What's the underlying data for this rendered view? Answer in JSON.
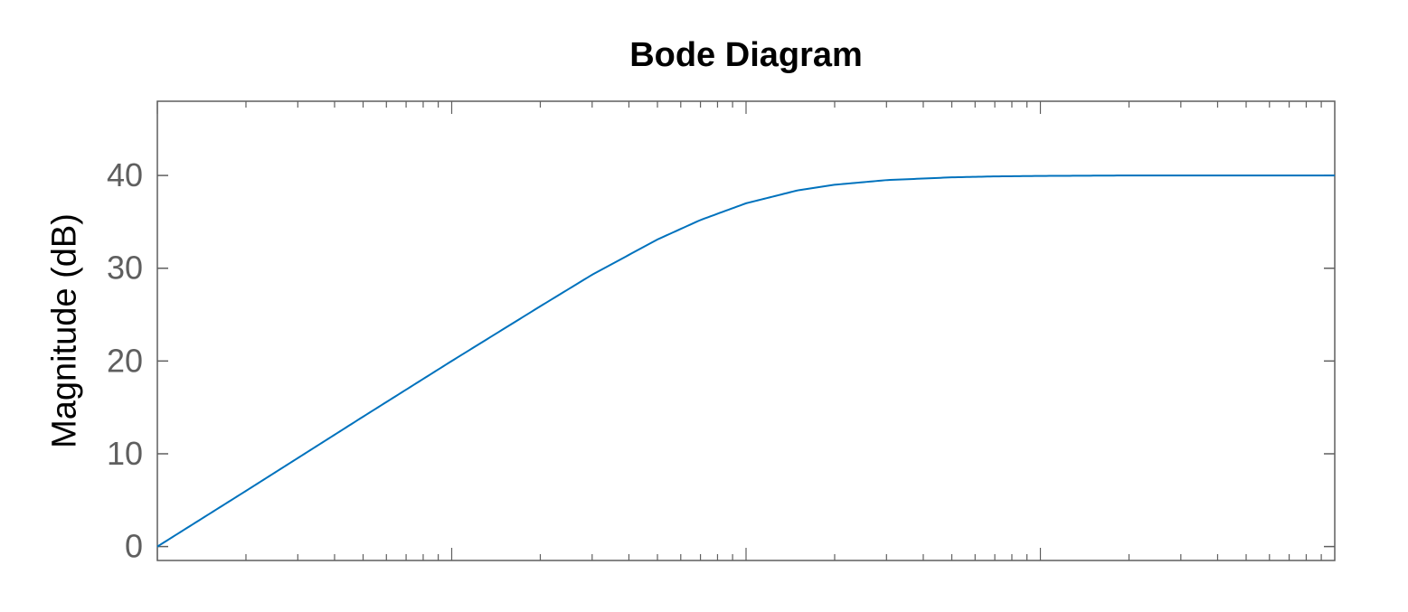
{
  "chart_data": {
    "type": "line",
    "title": "Bode Diagram",
    "xlabel": "",
    "ylabel": "Magnitude (dB)",
    "x_scale": "log",
    "xlim": [
      1,
      10000
    ],
    "ylim": [
      -1.5,
      48
    ],
    "y_ticks": [
      "0",
      "10",
      "20",
      "30",
      "40"
    ],
    "y_tick_values": [
      0,
      10,
      20,
      30,
      40
    ],
    "x_tick_labels_visible": false,
    "grid": false,
    "line_color": "#0072bd",
    "axes_color": "#5f5f5f",
    "series": [
      {
        "name": "",
        "x": [
          1,
          2,
          5,
          10,
          20,
          30,
          50,
          70,
          100,
          150,
          200,
          300,
          500,
          700,
          1000,
          2000,
          5000,
          10000
        ],
        "y": [
          0,
          6,
          14,
          20,
          25.9,
          29.3,
          33.1,
          35.2,
          37,
          38.4,
          39,
          39.5,
          39.8,
          39.9,
          39.95,
          40,
          40,
          40
        ]
      }
    ]
  }
}
